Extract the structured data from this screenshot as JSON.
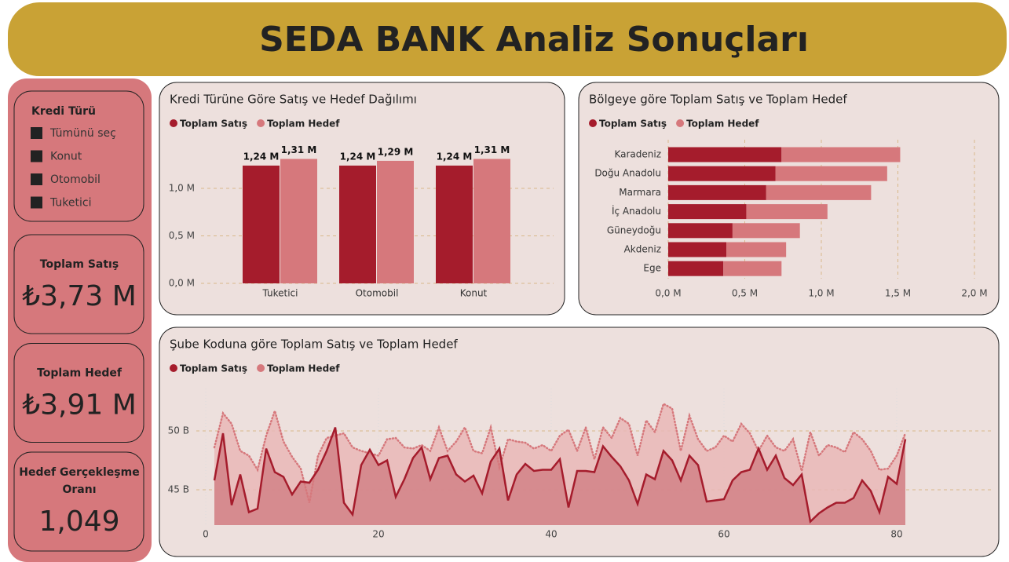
{
  "header": {
    "title": "SEDA BANK Analiz Sonuçları"
  },
  "slicer": {
    "title": "Kredi Türü",
    "items": [
      "Tümünü seç",
      "Konut",
      "Otomobil",
      "Tuketici"
    ]
  },
  "cards": [
    {
      "label": "Toplam Satış",
      "value": "₺3,73 M"
    },
    {
      "label": "Toplam Hedef",
      "value": "₺3,91 M"
    },
    {
      "label": "Hedef Gerçekleşme Oranı",
      "value": "1,049"
    }
  ],
  "chart_data": [
    {
      "type": "bar",
      "title": "Kredi Türüne Göre Satış ve Hedef Dağılımı",
      "categories": [
        "Tuketici",
        "Otomobil",
        "Konut"
      ],
      "series": [
        {
          "name": "Toplam Satış",
          "color": "#a51c2c",
          "values": [
            1.24,
            1.24,
            1.24
          ],
          "value_labels": [
            "1,24 M",
            "1,24 M",
            "1,24 M"
          ]
        },
        {
          "name": "Toplam Hedef",
          "color": "#d6787c",
          "values": [
            1.31,
            1.29,
            1.31
          ],
          "value_labels": [
            "1,31 M",
            "1,29 M",
            "1,31 M"
          ]
        }
      ],
      "ylim": [
        0,
        1.5
      ],
      "yticks": [
        {
          "value": 0,
          "label": "0,0 M"
        },
        {
          "value": 0.5,
          "label": "0,5 M"
        },
        {
          "value": 1,
          "label": "1,0 M"
        }
      ],
      "grid": true
    },
    {
      "type": "hbar-stacked",
      "title": "Bölgeye göre Toplam Satış ve Toplam Hedef",
      "categories": [
        "Karadeniz",
        "Doğu Anadolu",
        "Marmara",
        "İç Anadolu",
        "Güneydoğu",
        "Akdeniz",
        "Ege"
      ],
      "series": [
        {
          "name": "Toplam Satış",
          "color": "#a51c2c",
          "values": [
            0.74,
            0.7,
            0.64,
            0.51,
            0.42,
            0.38,
            0.36
          ]
        },
        {
          "name": "Toplam Hedef",
          "color": "#d6787c",
          "values": [
            0.775,
            0.73,
            0.685,
            0.53,
            0.44,
            0.39,
            0.38
          ]
        }
      ],
      "xlim": [
        0,
        2
      ],
      "xticks": [
        {
          "value": 0,
          "label": "0,0 M"
        },
        {
          "value": 0.5,
          "label": "0,5 M"
        },
        {
          "value": 1,
          "label": "1,0 M"
        },
        {
          "value": 1.5,
          "label": "1,5 M"
        },
        {
          "value": 2,
          "label": "2,0 M"
        }
      ],
      "grid": true
    },
    {
      "type": "area-line",
      "title": "Şube Koduna göre Toplam Satış ve Toplam Hedef",
      "x": [
        1,
        2,
        3,
        4,
        5,
        6,
        7,
        8,
        9,
        10,
        11,
        12,
        13,
        14,
        15,
        16,
        17,
        18,
        19,
        20,
        21,
        22,
        23,
        24,
        25,
        26,
        27,
        28,
        29,
        30,
        31,
        32,
        33,
        34,
        35,
        36,
        37,
        38,
        39,
        40,
        41,
        42,
        43,
        44,
        45,
        46,
        47,
        48,
        49,
        50,
        51,
        52,
        53,
        54,
        55,
        56,
        57,
        58,
        59,
        60,
        61,
        62,
        63,
        64,
        65,
        66,
        67,
        68,
        69,
        70,
        71,
        72,
        73,
        74,
        75,
        76,
        77,
        78,
        79,
        80,
        81
      ],
      "series": [
        {
          "name": "Toplam Satış",
          "color": "#a51c2c",
          "values": [
            45.8,
            49.8,
            43.7,
            46.3,
            43.1,
            43.4,
            48.5,
            46.5,
            46.1,
            44.6,
            45.7,
            45.6,
            46.7,
            48.3,
            50.3,
            43.9,
            42.9,
            47.1,
            48.4,
            47.1,
            47.5,
            44.4,
            45.9,
            47.7,
            48.6,
            45.9,
            47.7,
            47.9,
            46.3,
            45.7,
            46.2,
            44.7,
            47.4,
            48.5,
            44.1,
            46.3,
            47.2,
            46.6,
            46.7,
            46.7,
            47.6,
            43.5,
            46.6,
            46.6,
            46.5,
            48.7,
            47.8,
            47.0,
            45.8,
            43.8,
            46.3,
            45.9,
            48.3,
            47.5,
            45.8,
            47.9,
            47.1,
            44.0,
            44.1,
            44.2,
            45.8,
            46.5,
            46.7,
            48.5,
            46.7,
            47.9,
            46.0,
            45.4,
            46.3,
            42.3,
            43.0,
            43.5,
            43.9,
            43.9,
            44.3,
            45.8,
            44.9,
            43.1,
            46.1,
            45.5,
            49.3
          ]
        },
        {
          "name": "Toplam Hedef",
          "color": "#d6787c",
          "values": [
            48.6,
            51.5,
            50.6,
            48.3,
            47.9,
            46.7,
            49.6,
            51.7,
            49.1,
            47.8,
            46.8,
            43.9,
            47.9,
            49.4,
            49.6,
            49.8,
            48.6,
            48.3,
            48.1,
            47.9,
            49.3,
            49.4,
            48.6,
            48.5,
            48.8,
            48.3,
            50.3,
            48.3,
            49.1,
            50.3,
            48.3,
            48.1,
            50.3,
            46.9,
            49.3,
            49.1,
            49.0,
            48.5,
            48.8,
            48.3,
            49.6,
            50.1,
            48.3,
            50.3,
            47.6,
            50.3,
            49.4,
            51.1,
            50.6,
            47.9,
            50.9,
            49.9,
            52.3,
            51.9,
            48.3,
            51.3,
            49.3,
            48.3,
            48.6,
            49.6,
            49.1,
            50.6,
            49.8,
            48.3,
            49.6,
            48.6,
            48.3,
            49.3,
            46.6,
            49.9,
            47.9,
            48.8,
            48.6,
            48.2,
            49.9,
            49.3,
            48.3,
            46.7,
            46.8,
            47.9,
            49.8
          ]
        }
      ],
      "xlim": [
        0,
        81
      ],
      "xticks": [
        0,
        20,
        40,
        60,
        80
      ],
      "ylim": [
        42,
        53.6
      ],
      "yticks": [
        {
          "value": 45,
          "label": "45 B"
        },
        {
          "value": 50,
          "label": "50 B"
        }
      ],
      "grid": true
    }
  ]
}
